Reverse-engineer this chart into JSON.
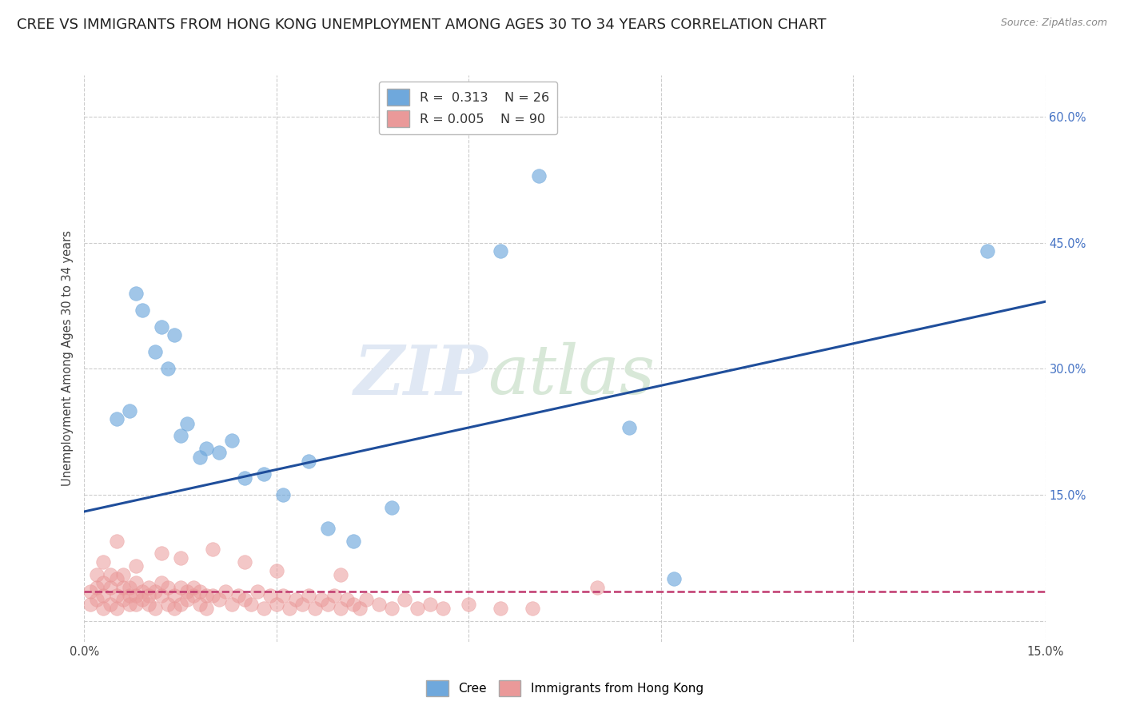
{
  "title": "CREE VS IMMIGRANTS FROM HONG KONG UNEMPLOYMENT AMONG AGES 30 TO 34 YEARS CORRELATION CHART",
  "source": "Source: ZipAtlas.com",
  "ylabel": "Unemployment Among Ages 30 to 34 years",
  "xlim": [
    0.0,
    0.15
  ],
  "ylim": [
    -0.025,
    0.65
  ],
  "xticks": [
    0.0,
    0.03,
    0.06,
    0.09,
    0.12,
    0.15
  ],
  "xticklabels": [
    "0.0%",
    "",
    "",
    "",
    "",
    "15.0%"
  ],
  "right_yticks": [
    0.15,
    0.3,
    0.45,
    0.6
  ],
  "right_yticklabels": [
    "15.0%",
    "30.0%",
    "45.0%",
    "60.0%"
  ],
  "cree_color": "#6fa8dc",
  "hk_color": "#ea9999",
  "cree_line_color": "#1f4e9b",
  "hk_line_color": "#c0396e",
  "cree_R": 0.313,
  "cree_N": 26,
  "hk_R": 0.005,
  "hk_N": 90,
  "legend_label_cree": "Cree",
  "legend_label_hk": "Immigrants from Hong Kong",
  "watermark_part1": "ZIP",
  "watermark_part2": "atlas",
  "background_color": "#ffffff",
  "grid_color": "#cccccc",
  "cree_line_y0": 0.13,
  "cree_line_y1": 0.38,
  "hk_line_y0": 0.035,
  "hk_line_y1": 0.035,
  "cree_x": [
    0.005,
    0.007,
    0.008,
    0.009,
    0.011,
    0.012,
    0.013,
    0.014,
    0.015,
    0.016,
    0.018,
    0.019,
    0.021,
    0.023,
    0.025,
    0.028,
    0.031,
    0.035,
    0.038,
    0.042,
    0.048,
    0.065,
    0.071,
    0.085,
    0.141,
    0.092
  ],
  "cree_y": [
    0.24,
    0.25,
    0.39,
    0.37,
    0.32,
    0.35,
    0.3,
    0.34,
    0.22,
    0.235,
    0.195,
    0.205,
    0.2,
    0.215,
    0.17,
    0.175,
    0.15,
    0.19,
    0.11,
    0.095,
    0.135,
    0.44,
    0.53,
    0.23,
    0.44,
    0.05
  ],
  "hk_x": [
    0.001,
    0.001,
    0.002,
    0.002,
    0.002,
    0.003,
    0.003,
    0.003,
    0.004,
    0.004,
    0.004,
    0.005,
    0.005,
    0.005,
    0.006,
    0.006,
    0.006,
    0.007,
    0.007,
    0.007,
    0.008,
    0.008,
    0.008,
    0.009,
    0.009,
    0.01,
    0.01,
    0.01,
    0.011,
    0.011,
    0.012,
    0.012,
    0.013,
    0.013,
    0.014,
    0.014,
    0.015,
    0.015,
    0.016,
    0.016,
    0.017,
    0.017,
    0.018,
    0.018,
    0.019,
    0.019,
    0.02,
    0.021,
    0.022,
    0.023,
    0.024,
    0.025,
    0.026,
    0.027,
    0.028,
    0.029,
    0.03,
    0.031,
    0.032,
    0.033,
    0.034,
    0.035,
    0.036,
    0.037,
    0.038,
    0.039,
    0.04,
    0.041,
    0.042,
    0.043,
    0.044,
    0.046,
    0.048,
    0.05,
    0.052,
    0.054,
    0.056,
    0.06,
    0.065,
    0.07,
    0.003,
    0.005,
    0.008,
    0.012,
    0.015,
    0.02,
    0.025,
    0.03,
    0.08,
    0.04
  ],
  "hk_y": [
    0.035,
    0.02,
    0.04,
    0.025,
    0.055,
    0.03,
    0.045,
    0.015,
    0.04,
    0.02,
    0.055,
    0.03,
    0.05,
    0.015,
    0.04,
    0.025,
    0.055,
    0.03,
    0.04,
    0.02,
    0.03,
    0.045,
    0.02,
    0.035,
    0.025,
    0.03,
    0.04,
    0.02,
    0.035,
    0.015,
    0.03,
    0.045,
    0.02,
    0.04,
    0.03,
    0.015,
    0.04,
    0.02,
    0.035,
    0.025,
    0.03,
    0.04,
    0.02,
    0.035,
    0.03,
    0.015,
    0.03,
    0.025,
    0.035,
    0.02,
    0.03,
    0.025,
    0.02,
    0.035,
    0.015,
    0.03,
    0.02,
    0.03,
    0.015,
    0.025,
    0.02,
    0.03,
    0.015,
    0.025,
    0.02,
    0.03,
    0.015,
    0.025,
    0.02,
    0.015,
    0.025,
    0.02,
    0.015,
    0.025,
    0.015,
    0.02,
    0.015,
    0.02,
    0.015,
    0.015,
    0.07,
    0.095,
    0.065,
    0.08,
    0.075,
    0.085,
    0.07,
    0.06,
    0.04,
    0.055
  ],
  "title_fontsize": 13,
  "axis_fontsize": 10.5,
  "tick_fontsize": 10.5,
  "marker_size": 160
}
